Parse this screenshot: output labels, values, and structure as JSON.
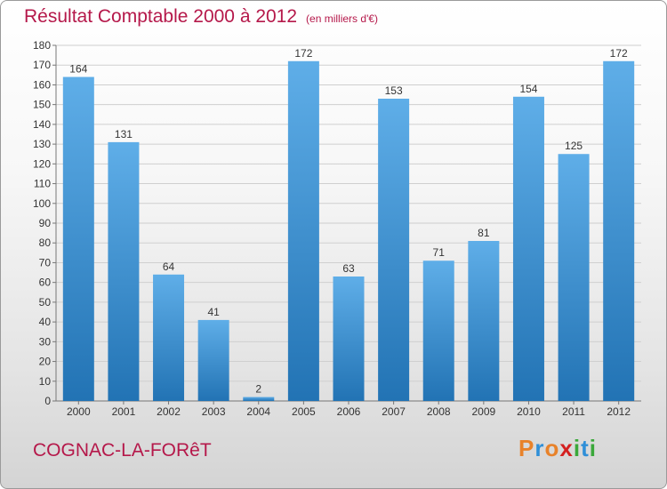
{
  "header": {
    "title": "Résultat Comptable 2000 à 2012",
    "unit": "(en milliers d'€)"
  },
  "footer": {
    "city": "COGNAC-LA-FORêT",
    "logo": "Proxiti",
    "logo_colors": [
      "#e8822a",
      "#2f8fd8",
      "#e8822a",
      "#d42020",
      "#3aa83a",
      "#2f8fd8",
      "#3aa83a"
    ]
  },
  "colors": {
    "title": "#b5184a",
    "bar_top": "#5faee8",
    "bar_bottom": "#2273b4",
    "grid": "#cfcfcf"
  },
  "chart_data": {
    "type": "bar",
    "title": "Résultat Comptable 2000 à 2012",
    "subtitle": "(en milliers d'€)",
    "categories": [
      "2000",
      "2001",
      "2002",
      "2003",
      "2004",
      "2005",
      "2006",
      "2007",
      "2008",
      "2009",
      "2010",
      "2011",
      "2012"
    ],
    "values": [
      164,
      131,
      64,
      41,
      2,
      172,
      63,
      153,
      71,
      81,
      154,
      125,
      172
    ],
    "ylim": [
      0,
      180
    ],
    "yticks": [
      0,
      10,
      20,
      30,
      40,
      50,
      60,
      70,
      80,
      90,
      100,
      110,
      120,
      130,
      140,
      150,
      160,
      170,
      180
    ],
    "grid": true,
    "data_labels": true
  }
}
